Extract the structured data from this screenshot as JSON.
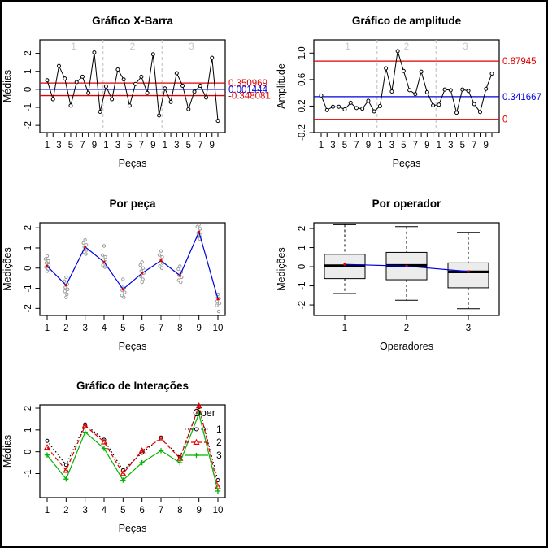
{
  "figure": {
    "background": "#ffffff",
    "border_color": "#000000"
  },
  "colors": {
    "limit_red": "#e00000",
    "center_blue": "#0000dd",
    "series_green": "#00b400",
    "series_black": "#000000",
    "scatter_gray": "#9e9e9e",
    "separator_gray": "#bdbdbd",
    "group_label_gray": "#c6c6c6",
    "box_fill": "#ececec"
  },
  "chart_data": [
    {
      "id": "xbar",
      "type": "line",
      "variant": "control",
      "title": "Gráfico X-Barra",
      "xlabel": "Peças",
      "ylabel": "Médias",
      "n_groups": 3,
      "points_per_group": 10,
      "group_labels": [
        "1",
        "2",
        "3"
      ],
      "xtick_label_pattern": [
        "1",
        "3",
        "5",
        "7",
        "9"
      ],
      "ylim": [
        -2.4,
        2.75
      ],
      "yticks": [
        -2,
        -1,
        0,
        1,
        2
      ],
      "ytick_labels": [
        "-2",
        "-1",
        "0",
        "1",
        "2"
      ],
      "values": [
        0.5,
        -0.55,
        1.3,
        0.6,
        -0.9,
        0.4,
        0.7,
        -0.2,
        2.05,
        -1.25,
        0.16,
        -0.55,
        1.1,
        0.55,
        -0.9,
        0.3,
        0.7,
        -0.2,
        1.95,
        -1.45,
        0.05,
        -0.7,
        0.9,
        0.2,
        -1.1,
        -0.13,
        0.2,
        -0.45,
        1.75,
        -1.75
      ],
      "center_line": {
        "value": 0.001444,
        "label": "0.001444",
        "color": "#0000dd"
      },
      "limit_lines": [
        {
          "value": 0.350969,
          "label": "0.350969",
          "color": "#e00000"
        },
        {
          "value": -0.348081,
          "label": "-0.348081",
          "color": "#e00000"
        }
      ]
    },
    {
      "id": "range",
      "type": "line",
      "variant": "control",
      "title": "Gráfico de amplitude",
      "xlabel": "Peças",
      "ylabel": "Amplitude",
      "n_groups": 3,
      "points_per_group": 10,
      "group_labels": [
        "1",
        "2",
        "3"
      ],
      "xtick_label_pattern": [
        "1",
        "3",
        "5",
        "7",
        "9"
      ],
      "ylim": [
        -0.2,
        1.2
      ],
      "yticks": [
        -0.2,
        0.2,
        0.6,
        1.0
      ],
      "ytick_labels": [
        "-0.2",
        "0.2",
        "0.6",
        "1.0"
      ],
      "values": [
        0.36,
        0.14,
        0.19,
        0.19,
        0.15,
        0.25,
        0.17,
        0.16,
        0.28,
        0.12,
        0.2,
        0.77,
        0.42,
        1.03,
        0.73,
        0.44,
        0.38,
        0.72,
        0.41,
        0.21,
        0.22,
        0.45,
        0.44,
        0.1,
        0.45,
        0.43,
        0.23,
        0.11,
        0.46,
        0.69
      ],
      "center_line": {
        "value": 0.341667,
        "label": "0.341667",
        "color": "#0000dd"
      },
      "limit_lines": [
        {
          "value": 0.87945,
          "label": "0.87945",
          "color": "#e00000"
        },
        {
          "value": 0,
          "label": "0",
          "color": "#e00000"
        }
      ]
    },
    {
      "id": "by_part",
      "type": "scatter",
      "variant": "by-part",
      "title": "Por peça",
      "xlabel": "Peças",
      "ylabel": "Medições",
      "categories": [
        "1",
        "2",
        "3",
        "4",
        "5",
        "6",
        "7",
        "8",
        "9",
        "10"
      ],
      "ylim": [
        -2.35,
        2.25
      ],
      "yticks": [
        -2,
        -1,
        0,
        1,
        2
      ],
      "ytick_labels": [
        "-2",
        "-1",
        "0",
        "1",
        "2"
      ],
      "means": [
        0.1,
        -0.85,
        1.05,
        0.3,
        -1.05,
        -0.25,
        0.37,
        -0.37,
        1.8,
        -1.53
      ],
      "measurements": [
        [
          0.6,
          0.45,
          0.35,
          0.25,
          0.15,
          0.05,
          -0.05,
          -0.15
        ],
        [
          -0.45,
          -0.65,
          -0.8,
          -0.95,
          -1.05,
          -1.15,
          -1.3,
          -1.45
        ],
        [
          1.4,
          1.25,
          1.15,
          1.05,
          0.9,
          0.8,
          0.7
        ],
        [
          1.1,
          0.65,
          0.55,
          0.4,
          0.3,
          0.15,
          0.05
        ],
        [
          -0.55,
          -0.9,
          -1.0,
          -1.1,
          -1.2,
          -1.35,
          -1.45
        ],
        [
          0.3,
          0.15,
          0.0,
          -0.15,
          -0.25,
          -0.4,
          -0.55,
          -0.7
        ],
        [
          0.85,
          0.65,
          0.55,
          0.4,
          0.25,
          0.1,
          0.0
        ],
        [
          0.1,
          -0.05,
          -0.2,
          -0.35,
          -0.45,
          -0.6,
          -0.7
        ],
        [
          2.15,
          2.05,
          1.95,
          1.75,
          1.65,
          1.55,
          1.45
        ],
        [
          -1.3,
          -1.4,
          -1.5,
          -1.65,
          -1.75,
          -1.85,
          -2.15
        ]
      ]
    },
    {
      "id": "by_operator",
      "type": "boxplot",
      "title": "Por operador",
      "xlabel": "Operadores",
      "ylabel": "Medições",
      "categories": [
        "1",
        "2",
        "3"
      ],
      "ylim": [
        -2.55,
        2.3
      ],
      "yticks": [
        -2,
        -1,
        0,
        1,
        2
      ],
      "ytick_labels": [
        "-2",
        "-1",
        "0",
        "1",
        "2"
      ],
      "boxes": [
        {
          "min": -1.4,
          "q1": -0.62,
          "median": 0.05,
          "q3": 0.65,
          "max": 2.2,
          "mean": 0.12
        },
        {
          "min": -1.75,
          "q1": -0.68,
          "median": 0.07,
          "q3": 0.75,
          "max": 2.1,
          "mean": 0.03
        },
        {
          "min": -2.2,
          "q1": -1.1,
          "median": -0.27,
          "q3": 0.2,
          "max": 1.8,
          "mean": -0.25
        }
      ]
    },
    {
      "id": "interaction",
      "type": "line",
      "variant": "interaction",
      "title": "Gráfico de Interações",
      "xlabel": "Peças",
      "ylabel": "Médias",
      "categories": [
        "1",
        "2",
        "3",
        "4",
        "5",
        "6",
        "7",
        "8",
        "9",
        "10"
      ],
      "ylim": [
        -2.1,
        2.15
      ],
      "yticks": [
        -1,
        0,
        1,
        2
      ],
      "ytick_labels": [
        "-1",
        "0",
        "1",
        "2"
      ],
      "legend_title": "Oper",
      "series": [
        {
          "name": "1",
          "color": "#000000",
          "line": "dotted",
          "marker": "circle",
          "values": [
            0.5,
            -0.6,
            1.25,
            0.55,
            -0.85,
            -0.05,
            0.65,
            -0.25,
            2.05,
            -1.3
          ]
        },
        {
          "name": "2",
          "color": "#e00000",
          "line": "dashed",
          "marker": "triangle",
          "values": [
            0.2,
            -0.85,
            1.2,
            0.45,
            -1.0,
            0.05,
            0.6,
            -0.3,
            2.1,
            -1.6
          ]
        },
        {
          "name": "3",
          "color": "#00b400",
          "line": "solid",
          "marker": "plus",
          "values": [
            -0.15,
            -1.25,
            0.9,
            0.15,
            -1.3,
            -0.5,
            0.05,
            -0.5,
            1.75,
            -1.8
          ]
        }
      ]
    }
  ]
}
